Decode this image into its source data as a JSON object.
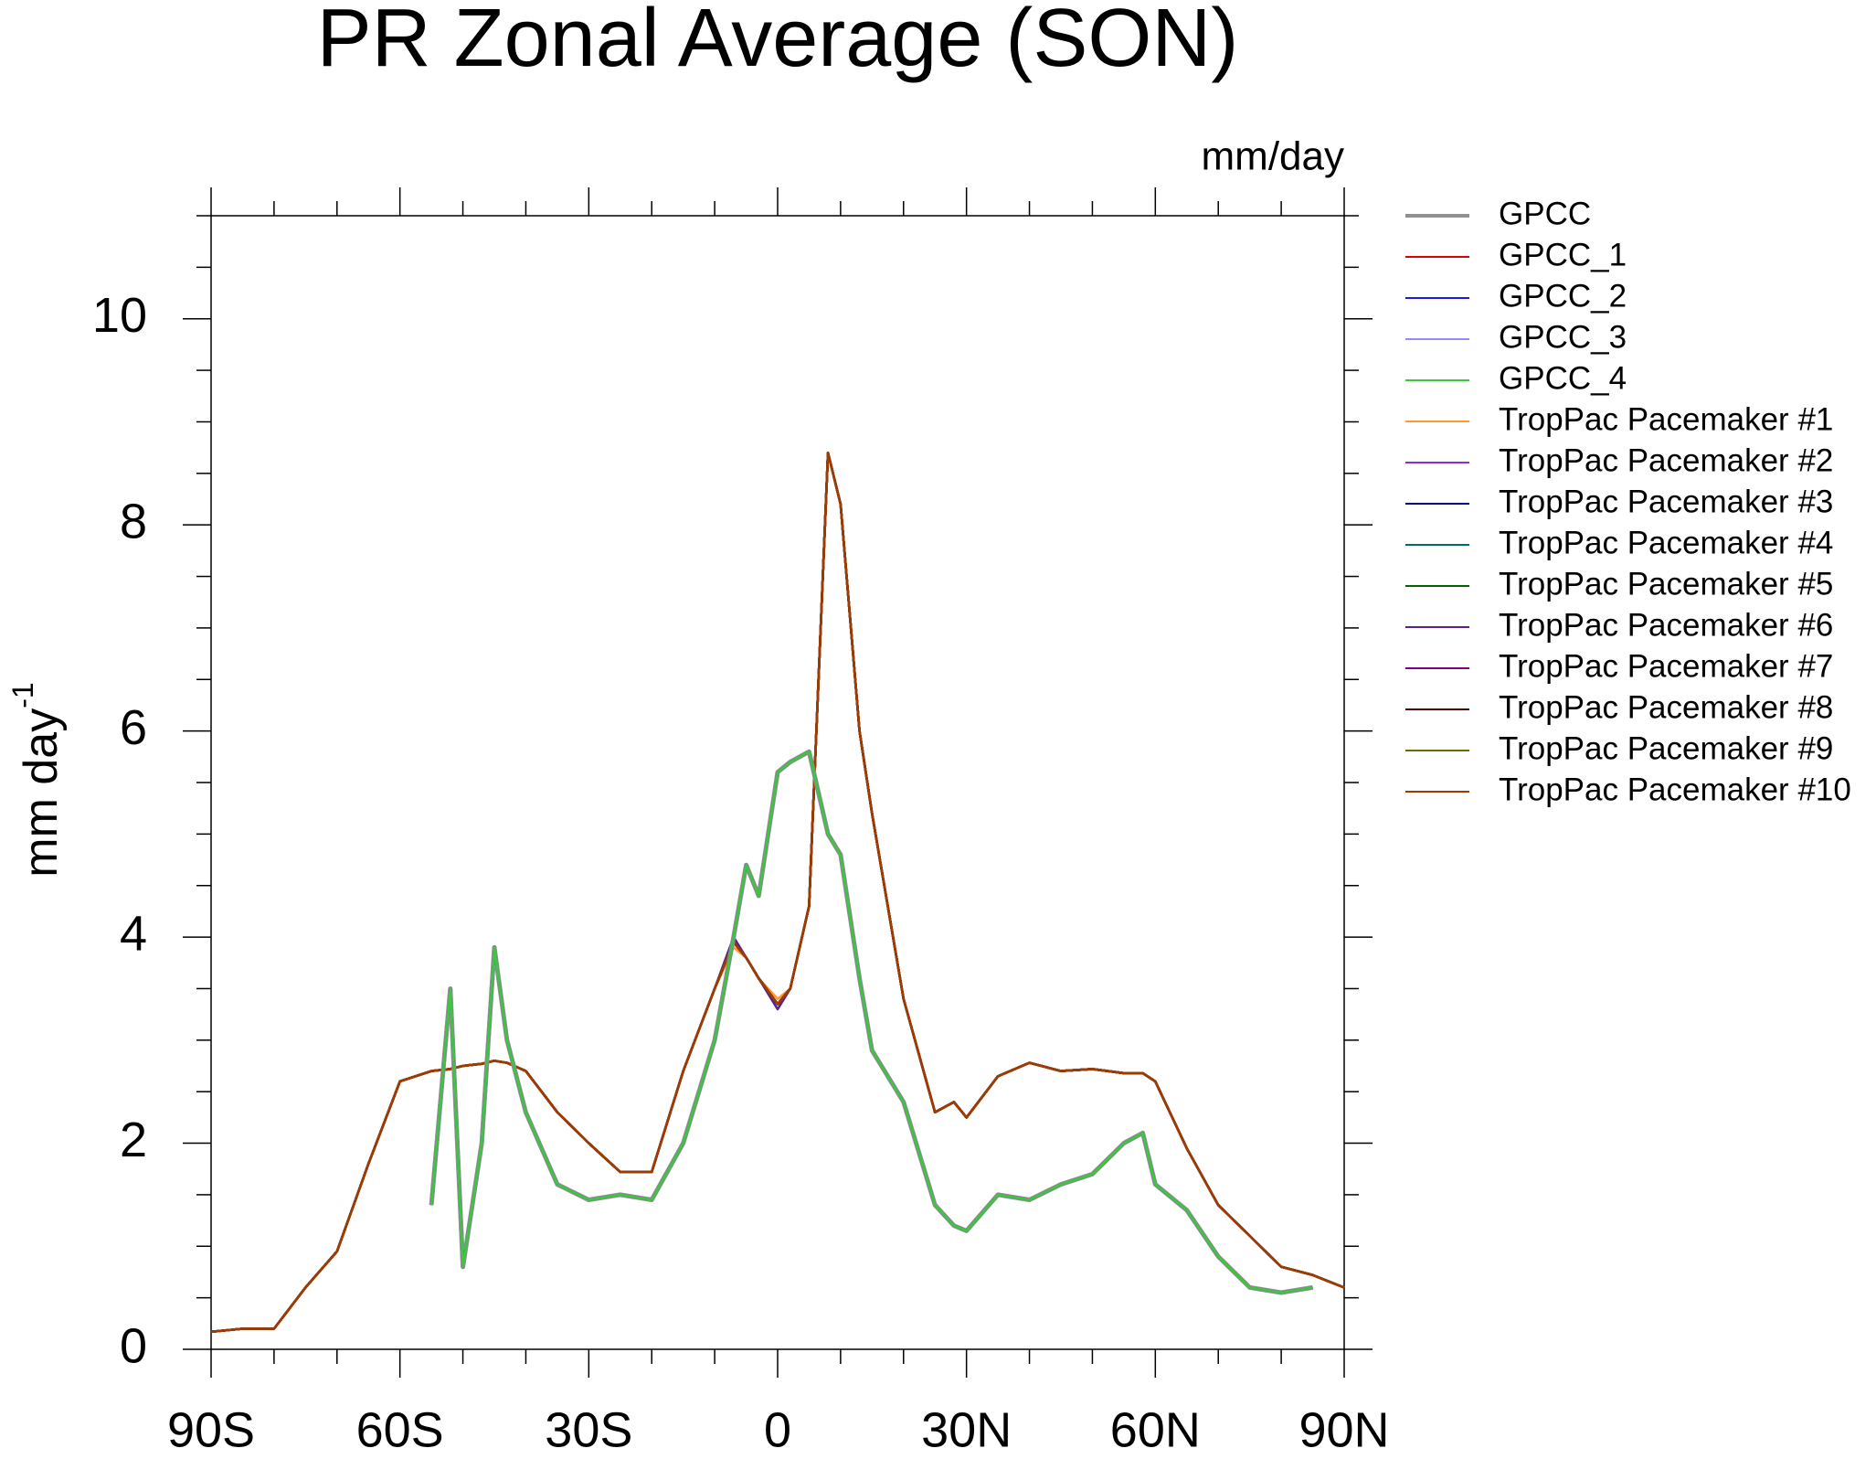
{
  "chart_data": {
    "type": "line",
    "title": "PR Zonal Average (SON)",
    "subtitle": "mm/day",
    "ylabel": "mm day",
    "ylabel_superscript": "-1",
    "x": [
      -90,
      -85,
      -80,
      -75,
      -70,
      -65,
      -60,
      -55,
      -52,
      -50,
      -47,
      -45,
      -43,
      -40,
      -35,
      -30,
      -25,
      -20,
      -15,
      -10,
      -7,
      -5,
      -3,
      0,
      2,
      5,
      8,
      10,
      13,
      15,
      20,
      25,
      28,
      30,
      35,
      40,
      45,
      50,
      55,
      58,
      60,
      65,
      70,
      75,
      80,
      85,
      90
    ],
    "xlim": [
      -90,
      90
    ],
    "xticks": [
      {
        "value": -90,
        "label": "90S"
      },
      {
        "value": -60,
        "label": "60S"
      },
      {
        "value": -30,
        "label": "30S"
      },
      0,
      {
        "value": 30,
        "label": "30N"
      },
      {
        "value": 60,
        "label": "60N"
      },
      {
        "value": 90,
        "label": "90N"
      }
    ],
    "x_minor_ticks": [
      -80,
      -70,
      -50,
      -40,
      -20,
      -10,
      10,
      20,
      40,
      50,
      70,
      80
    ],
    "ylim": [
      0,
      11
    ],
    "yticks": [
      0,
      2,
      4,
      6,
      8,
      10
    ],
    "y_minor_ticks": [
      0.5,
      1,
      1.5,
      2.5,
      3,
      3.5,
      4.5,
      5,
      5.5,
      6.5,
      7,
      7.5,
      8.5,
      9,
      9.5,
      10.5,
      11
    ],
    "series": [
      {
        "name": "GPCC",
        "color": "#909090",
        "values": [
          null,
          null,
          null,
          null,
          null,
          null,
          null,
          1.4,
          3.5,
          0.8,
          2.0,
          3.9,
          3.0,
          2.3,
          1.6,
          1.45,
          1.5,
          1.45,
          2.0,
          3.0,
          4.0,
          4.7,
          4.4,
          5.6,
          5.7,
          5.8,
          5.0,
          4.8,
          3.6,
          2.9,
          2.4,
          1.4,
          1.2,
          1.15,
          1.5,
          1.45,
          1.6,
          1.7,
          2.0,
          2.1,
          1.6,
          1.35,
          0.9,
          0.6,
          0.55,
          0.6,
          null
        ]
      },
      {
        "name": "GPCC_1",
        "color": "#e00000",
        "values": [
          null,
          null,
          null,
          null,
          null,
          null,
          null,
          1.4,
          3.5,
          0.8,
          2.0,
          3.9,
          3.0,
          2.3,
          1.6,
          1.45,
          1.5,
          1.45,
          2.0,
          3.0,
          4.0,
          4.7,
          4.4,
          5.6,
          5.7,
          5.8,
          5.0,
          4.8,
          3.6,
          2.9,
          2.4,
          1.4,
          1.2,
          1.15,
          1.5,
          1.45,
          1.6,
          1.7,
          2.0,
          2.1,
          1.6,
          1.35,
          0.9,
          0.6,
          0.55,
          0.6,
          null
        ]
      },
      {
        "name": "GPCC_2",
        "color": "#1a1ae6",
        "values": [
          null,
          null,
          null,
          null,
          null,
          null,
          null,
          1.4,
          3.5,
          0.8,
          2.0,
          3.9,
          3.0,
          2.3,
          1.6,
          1.45,
          1.5,
          1.45,
          2.0,
          3.0,
          4.0,
          4.7,
          4.4,
          5.6,
          5.7,
          5.8,
          5.0,
          4.8,
          3.6,
          2.9,
          2.4,
          1.4,
          1.2,
          1.15,
          1.5,
          1.45,
          1.6,
          1.7,
          2.0,
          2.1,
          1.6,
          1.35,
          0.9,
          0.6,
          0.55,
          0.6,
          null
        ]
      },
      {
        "name": "GPCC_3",
        "color": "#8c8cff",
        "values": [
          null,
          null,
          null,
          null,
          null,
          null,
          null,
          1.4,
          3.5,
          0.8,
          2.0,
          3.9,
          3.0,
          2.3,
          1.6,
          1.45,
          1.5,
          1.45,
          2.0,
          3.0,
          4.0,
          4.7,
          4.4,
          5.6,
          5.7,
          5.8,
          5.0,
          4.8,
          3.6,
          2.9,
          2.4,
          1.4,
          1.2,
          1.15,
          1.5,
          1.45,
          1.6,
          1.7,
          2.0,
          2.1,
          1.6,
          1.35,
          0.9,
          0.6,
          0.55,
          0.6,
          null
        ]
      },
      {
        "name": "GPCC_4",
        "color": "#3cc83c",
        "values": [
          null,
          null,
          null,
          null,
          null,
          null,
          null,
          1.4,
          3.5,
          0.8,
          2.0,
          3.9,
          3.0,
          2.3,
          1.6,
          1.45,
          1.5,
          1.45,
          2.0,
          3.0,
          4.0,
          4.7,
          4.4,
          5.6,
          5.7,
          5.8,
          5.0,
          4.8,
          3.6,
          2.9,
          2.4,
          1.4,
          1.2,
          1.15,
          1.5,
          1.45,
          1.6,
          1.7,
          2.0,
          2.1,
          1.6,
          1.35,
          0.9,
          0.6,
          0.55,
          0.6,
          null
        ]
      },
      {
        "name": "TropPac Pacemaker #1",
        "color": "#ff9a33",
        "values": [
          0.17,
          0.2,
          0.2,
          0.6,
          0.95,
          1.8,
          2.6,
          2.7,
          2.72,
          2.75,
          2.77,
          2.8,
          2.78,
          2.7,
          2.3,
          2.0,
          1.72,
          1.72,
          2.7,
          3.5,
          3.9,
          3.8,
          3.6,
          3.4,
          3.5,
          4.3,
          8.7,
          8.2,
          6.0,
          5.2,
          3.4,
          2.3,
          2.4,
          2.25,
          2.65,
          2.78,
          2.7,
          2.72,
          2.68,
          2.68,
          2.6,
          1.95,
          1.4,
          1.1,
          0.8,
          0.72,
          0.6
        ]
      },
      {
        "name": "TropPac Pacemaker #2",
        "color": "#8a2be2",
        "values": [
          0.17,
          0.2,
          0.2,
          0.6,
          0.95,
          1.8,
          2.6,
          2.7,
          2.72,
          2.75,
          2.77,
          2.8,
          2.78,
          2.7,
          2.3,
          2.0,
          1.72,
          1.72,
          2.7,
          3.5,
          3.95,
          3.8,
          3.6,
          3.35,
          3.5,
          4.3,
          8.7,
          8.2,
          6.0,
          5.2,
          3.4,
          2.3,
          2.4,
          2.25,
          2.65,
          2.78,
          2.7,
          2.72,
          2.68,
          2.68,
          2.6,
          1.95,
          1.4,
          1.1,
          0.8,
          0.72,
          0.6
        ]
      },
      {
        "name": "TropPac Pacemaker #3",
        "color": "#000080",
        "values": [
          0.17,
          0.2,
          0.2,
          0.6,
          0.95,
          1.8,
          2.6,
          2.7,
          2.72,
          2.75,
          2.77,
          2.8,
          2.78,
          2.7,
          2.3,
          2.0,
          1.72,
          1.72,
          2.7,
          3.5,
          3.95,
          3.8,
          3.6,
          3.35,
          3.5,
          4.3,
          8.7,
          8.2,
          6.0,
          5.2,
          3.4,
          2.3,
          2.4,
          2.25,
          2.65,
          2.78,
          2.7,
          2.72,
          2.68,
          2.68,
          2.6,
          1.95,
          1.4,
          1.1,
          0.8,
          0.72,
          0.6
        ]
      },
      {
        "name": "TropPac Pacemaker #4",
        "color": "#006b6b",
        "values": [
          0.17,
          0.2,
          0.2,
          0.6,
          0.95,
          1.8,
          2.6,
          2.7,
          2.72,
          2.75,
          2.77,
          2.8,
          2.78,
          2.7,
          2.3,
          2.0,
          1.72,
          1.72,
          2.7,
          3.5,
          3.95,
          3.8,
          3.6,
          3.35,
          3.5,
          4.3,
          8.7,
          8.2,
          6.0,
          5.2,
          3.4,
          2.3,
          2.4,
          2.25,
          2.65,
          2.78,
          2.7,
          2.72,
          2.68,
          2.68,
          2.6,
          1.95,
          1.4,
          1.1,
          0.8,
          0.72,
          0.6
        ]
      },
      {
        "name": "TropPac Pacemaker #5",
        "color": "#006400",
        "values": [
          0.17,
          0.2,
          0.2,
          0.6,
          0.95,
          1.8,
          2.6,
          2.7,
          2.72,
          2.75,
          2.77,
          2.8,
          2.78,
          2.7,
          2.3,
          2.0,
          1.72,
          1.72,
          2.7,
          3.5,
          3.95,
          3.8,
          3.6,
          3.35,
          3.5,
          4.3,
          8.7,
          8.2,
          6.0,
          5.2,
          3.4,
          2.3,
          2.4,
          2.25,
          2.65,
          2.78,
          2.7,
          2.72,
          2.68,
          2.68,
          2.6,
          1.95,
          1.4,
          1.1,
          0.8,
          0.72,
          0.6
        ]
      },
      {
        "name": "TropPac Pacemaker #6",
        "color": "#5a2090",
        "values": [
          0.17,
          0.2,
          0.2,
          0.6,
          0.95,
          1.8,
          2.6,
          2.7,
          2.72,
          2.75,
          2.77,
          2.8,
          2.78,
          2.7,
          2.3,
          2.0,
          1.72,
          1.72,
          2.7,
          3.5,
          4.0,
          3.8,
          3.6,
          3.3,
          3.5,
          4.3,
          8.7,
          8.2,
          6.0,
          5.2,
          3.4,
          2.3,
          2.4,
          2.25,
          2.65,
          2.78,
          2.7,
          2.72,
          2.68,
          2.68,
          2.6,
          1.95,
          1.4,
          1.1,
          0.8,
          0.72,
          0.6
        ]
      },
      {
        "name": "TropPac Pacemaker #7",
        "color": "#800080",
        "values": [
          0.17,
          0.2,
          0.2,
          0.6,
          0.95,
          1.8,
          2.6,
          2.7,
          2.72,
          2.75,
          2.77,
          2.8,
          2.78,
          2.7,
          2.3,
          2.0,
          1.72,
          1.72,
          2.7,
          3.5,
          3.95,
          3.8,
          3.6,
          3.35,
          3.5,
          4.3,
          8.7,
          8.2,
          6.0,
          5.2,
          3.4,
          2.3,
          2.4,
          2.25,
          2.65,
          2.78,
          2.7,
          2.72,
          2.68,
          2.68,
          2.6,
          1.95,
          1.4,
          1.1,
          0.8,
          0.72,
          0.6
        ]
      },
      {
        "name": "TropPac Pacemaker #8",
        "color": "#4d0000",
        "values": [
          0.17,
          0.2,
          0.2,
          0.6,
          0.95,
          1.8,
          2.6,
          2.7,
          2.72,
          2.75,
          2.77,
          2.8,
          2.78,
          2.7,
          2.3,
          2.0,
          1.72,
          1.72,
          2.7,
          3.5,
          3.95,
          3.8,
          3.6,
          3.35,
          3.5,
          4.3,
          8.7,
          8.2,
          6.0,
          5.2,
          3.4,
          2.3,
          2.4,
          2.25,
          2.65,
          2.78,
          2.7,
          2.72,
          2.68,
          2.68,
          2.6,
          1.95,
          1.4,
          1.1,
          0.8,
          0.72,
          0.6
        ]
      },
      {
        "name": "TropPac Pacemaker #9",
        "color": "#6b6b00",
        "values": [
          0.17,
          0.2,
          0.2,
          0.6,
          0.95,
          1.8,
          2.6,
          2.7,
          2.72,
          2.75,
          2.77,
          2.8,
          2.78,
          2.7,
          2.3,
          2.0,
          1.72,
          1.72,
          2.7,
          3.5,
          3.95,
          3.8,
          3.6,
          3.35,
          3.5,
          4.3,
          8.7,
          8.2,
          6.0,
          5.2,
          3.4,
          2.3,
          2.4,
          2.25,
          2.65,
          2.78,
          2.7,
          2.72,
          2.68,
          2.68,
          2.6,
          1.95,
          1.4,
          1.1,
          0.8,
          0.72,
          0.6
        ]
      },
      {
        "name": "TropPac Pacemaker #10",
        "color": "#a03a00",
        "values": [
          0.17,
          0.2,
          0.2,
          0.6,
          0.95,
          1.8,
          2.6,
          2.7,
          2.72,
          2.75,
          2.77,
          2.8,
          2.78,
          2.7,
          2.3,
          2.0,
          1.72,
          1.72,
          2.7,
          3.5,
          3.95,
          3.8,
          3.6,
          3.35,
          3.5,
          4.3,
          8.7,
          8.2,
          6.0,
          5.2,
          3.4,
          2.3,
          2.4,
          2.25,
          2.65,
          2.78,
          2.7,
          2.72,
          2.68,
          2.68,
          2.6,
          1.95,
          1.4,
          1.1,
          0.8,
          0.72,
          0.6
        ]
      }
    ]
  }
}
